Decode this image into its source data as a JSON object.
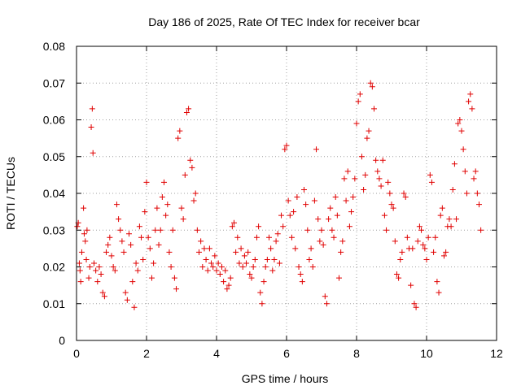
{
  "chart_data": {
    "type": "scatter",
    "title": "Day 186 of 2025, Rate Of TEC Index for receiver bcar",
    "xlabel": "GPS time / hours",
    "ylabel": "ROTI / TECUs",
    "xlim": [
      0,
      12
    ],
    "ylim": [
      0,
      0.08
    ],
    "x_ticks": [
      "0",
      "2",
      "4",
      "6",
      "8",
      "10",
      "12"
    ],
    "y_ticks": [
      "0",
      "0.01",
      "0.02",
      "0.03",
      "0.04",
      "0.05",
      "0.06",
      "0.07",
      "0.08"
    ],
    "x_tick_values": [
      0,
      2,
      4,
      6,
      8,
      10,
      12
    ],
    "y_tick_values": [
      0,
      0.01,
      0.02,
      0.03,
      0.04,
      0.05,
      0.06,
      0.07,
      0.08
    ],
    "grid": true,
    "marker": "+",
    "color": "#e00000",
    "series": [
      {
        "points": [
          [
            0.02,
            0.031
          ],
          [
            0.05,
            0.032
          ],
          [
            0.08,
            0.021
          ],
          [
            0.1,
            0.019
          ],
          [
            0.12,
            0.016
          ],
          [
            0.15,
            0.024
          ],
          [
            0.2,
            0.036
          ],
          [
            0.22,
            0.029
          ],
          [
            0.25,
            0.027
          ],
          [
            0.28,
            0.022
          ],
          [
            0.3,
            0.03
          ],
          [
            0.35,
            0.017
          ],
          [
            0.38,
            0.02
          ],
          [
            0.42,
            0.058
          ],
          [
            0.45,
            0.063
          ],
          [
            0.47,
            0.051
          ],
          [
            0.5,
            0.021
          ],
          [
            0.55,
            0.019
          ],
          [
            0.6,
            0.016
          ],
          [
            0.65,
            0.02
          ],
          [
            0.7,
            0.018
          ],
          [
            0.75,
            0.013
          ],
          [
            0.8,
            0.012
          ],
          [
            0.85,
            0.024
          ],
          [
            0.9,
            0.026
          ],
          [
            0.95,
            0.028
          ],
          [
            1.0,
            0.023
          ],
          [
            1.05,
            0.02
          ],
          [
            1.1,
            0.019
          ],
          [
            1.15,
            0.037
          ],
          [
            1.2,
            0.033
          ],
          [
            1.25,
            0.03
          ],
          [
            1.3,
            0.027
          ],
          [
            1.35,
            0.024
          ],
          [
            1.4,
            0.013
          ],
          [
            1.45,
            0.011
          ],
          [
            1.5,
            0.029
          ],
          [
            1.55,
            0.026
          ],
          [
            1.6,
            0.016
          ],
          [
            1.65,
            0.009
          ],
          [
            1.7,
            0.021
          ],
          [
            1.75,
            0.019
          ],
          [
            1.8,
            0.031
          ],
          [
            1.85,
            0.028
          ],
          [
            1.9,
            0.022
          ],
          [
            1.95,
            0.035
          ],
          [
            2.0,
            0.043
          ],
          [
            2.05,
            0.028
          ],
          [
            2.1,
            0.025
          ],
          [
            2.15,
            0.017
          ],
          [
            2.2,
            0.021
          ],
          [
            2.25,
            0.03
          ],
          [
            2.3,
            0.036
          ],
          [
            2.35,
            0.026
          ],
          [
            2.4,
            0.03
          ],
          [
            2.45,
            0.039
          ],
          [
            2.5,
            0.043
          ],
          [
            2.55,
            0.034
          ],
          [
            2.6,
            0.037
          ],
          [
            2.65,
            0.024
          ],
          [
            2.7,
            0.02
          ],
          [
            2.75,
            0.03
          ],
          [
            2.8,
            0.017
          ],
          [
            2.85,
            0.014
          ],
          [
            2.9,
            0.055
          ],
          [
            2.95,
            0.057
          ],
          [
            3.0,
            0.036
          ],
          [
            3.05,
            0.033
          ],
          [
            3.1,
            0.045
          ],
          [
            3.15,
            0.062
          ],
          [
            3.2,
            0.063
          ],
          [
            3.25,
            0.049
          ],
          [
            3.3,
            0.047
          ],
          [
            3.35,
            0.038
          ],
          [
            3.4,
            0.04
          ],
          [
            3.45,
            0.03
          ],
          [
            3.5,
            0.024
          ],
          [
            3.55,
            0.027
          ],
          [
            3.6,
            0.02
          ],
          [
            3.65,
            0.025
          ],
          [
            3.7,
            0.022
          ],
          [
            3.75,
            0.019
          ],
          [
            3.8,
            0.025
          ],
          [
            3.85,
            0.021
          ],
          [
            3.9,
            0.02
          ],
          [
            3.95,
            0.023
          ],
          [
            4.0,
            0.019
          ],
          [
            4.05,
            0.021
          ],
          [
            4.1,
            0.018
          ],
          [
            4.15,
            0.02
          ],
          [
            4.2,
            0.016
          ],
          [
            4.25,
            0.019
          ],
          [
            4.3,
            0.014
          ],
          [
            4.35,
            0.015
          ],
          [
            4.4,
            0.017
          ],
          [
            4.45,
            0.031
          ],
          [
            4.5,
            0.032
          ],
          [
            4.55,
            0.024
          ],
          [
            4.6,
            0.028
          ],
          [
            4.65,
            0.021
          ],
          [
            4.7,
            0.025
          ],
          [
            4.75,
            0.02
          ],
          [
            4.8,
            0.023
          ],
          [
            4.85,
            0.021
          ],
          [
            4.9,
            0.024
          ],
          [
            4.95,
            0.018
          ],
          [
            5.0,
            0.017
          ],
          [
            5.05,
            0.02
          ],
          [
            5.1,
            0.022
          ],
          [
            5.15,
            0.028
          ],
          [
            5.2,
            0.031
          ],
          [
            5.25,
            0.013
          ],
          [
            5.3,
            0.01
          ],
          [
            5.35,
            0.016
          ],
          [
            5.4,
            0.02
          ],
          [
            5.45,
            0.022
          ],
          [
            5.5,
            0.028
          ],
          [
            5.55,
            0.025
          ],
          [
            5.6,
            0.019
          ],
          [
            5.65,
            0.022
          ],
          [
            5.7,
            0.027
          ],
          [
            5.75,
            0.029
          ],
          [
            5.8,
            0.021
          ],
          [
            5.85,
            0.034
          ],
          [
            5.9,
            0.031
          ],
          [
            5.95,
            0.052
          ],
          [
            6.0,
            0.053
          ],
          [
            6.05,
            0.038
          ],
          [
            6.1,
            0.034
          ],
          [
            6.15,
            0.028
          ],
          [
            6.2,
            0.035
          ],
          [
            6.25,
            0.025
          ],
          [
            6.3,
            0.039
          ],
          [
            6.35,
            0.02
          ],
          [
            6.4,
            0.018
          ],
          [
            6.45,
            0.016
          ],
          [
            6.5,
            0.041
          ],
          [
            6.55,
            0.037
          ],
          [
            6.6,
            0.03
          ],
          [
            6.65,
            0.022
          ],
          [
            6.7,
            0.025
          ],
          [
            6.75,
            0.02
          ],
          [
            6.8,
            0.038
          ],
          [
            6.85,
            0.052
          ],
          [
            6.9,
            0.033
          ],
          [
            6.95,
            0.027
          ],
          [
            7.0,
            0.03
          ],
          [
            7.05,
            0.026
          ],
          [
            7.1,
            0.012
          ],
          [
            7.15,
            0.01
          ],
          [
            7.2,
            0.033
          ],
          [
            7.25,
            0.036
          ],
          [
            7.3,
            0.03
          ],
          [
            7.35,
            0.028
          ],
          [
            7.4,
            0.039
          ],
          [
            7.45,
            0.034
          ],
          [
            7.5,
            0.017
          ],
          [
            7.55,
            0.024
          ],
          [
            7.6,
            0.027
          ],
          [
            7.65,
            0.044
          ],
          [
            7.7,
            0.038
          ],
          [
            7.75,
            0.046
          ],
          [
            7.8,
            0.031
          ],
          [
            7.85,
            0.035
          ],
          [
            7.9,
            0.039
          ],
          [
            7.95,
            0.044
          ],
          [
            8.0,
            0.059
          ],
          [
            8.05,
            0.065
          ],
          [
            8.1,
            0.067
          ],
          [
            8.15,
            0.05
          ],
          [
            8.2,
            0.041
          ],
          [
            8.25,
            0.045
          ],
          [
            8.3,
            0.055
          ],
          [
            8.35,
            0.057
          ],
          [
            8.4,
            0.07
          ],
          [
            8.45,
            0.069
          ],
          [
            8.5,
            0.063
          ],
          [
            8.55,
            0.049
          ],
          [
            8.6,
            0.046
          ],
          [
            8.65,
            0.044
          ],
          [
            8.7,
            0.042
          ],
          [
            8.75,
            0.049
          ],
          [
            8.8,
            0.034
          ],
          [
            8.85,
            0.03
          ],
          [
            8.9,
            0.043
          ],
          [
            8.95,
            0.04
          ],
          [
            9.0,
            0.037
          ],
          [
            9.05,
            0.036
          ],
          [
            9.1,
            0.027
          ],
          [
            9.15,
            0.018
          ],
          [
            9.2,
            0.017
          ],
          [
            9.25,
            0.022
          ],
          [
            9.3,
            0.024
          ],
          [
            9.35,
            0.04
          ],
          [
            9.4,
            0.039
          ],
          [
            9.45,
            0.028
          ],
          [
            9.5,
            0.025
          ],
          [
            9.55,
            0.015
          ],
          [
            9.6,
            0.025
          ],
          [
            9.65,
            0.01
          ],
          [
            9.7,
            0.009
          ],
          [
            9.75,
            0.027
          ],
          [
            9.8,
            0.031
          ],
          [
            9.85,
            0.03
          ],
          [
            9.9,
            0.026
          ],
          [
            9.95,
            0.025
          ],
          [
            10.0,
            0.022
          ],
          [
            10.05,
            0.028
          ],
          [
            10.1,
            0.045
          ],
          [
            10.15,
            0.043
          ],
          [
            10.2,
            0.024
          ],
          [
            10.25,
            0.028
          ],
          [
            10.3,
            0.016
          ],
          [
            10.35,
            0.013
          ],
          [
            10.4,
            0.034
          ],
          [
            10.45,
            0.036
          ],
          [
            10.5,
            0.023
          ],
          [
            10.55,
            0.024
          ],
          [
            10.6,
            0.031
          ],
          [
            10.65,
            0.033
          ],
          [
            10.7,
            0.031
          ],
          [
            10.75,
            0.041
          ],
          [
            10.8,
            0.048
          ],
          [
            10.85,
            0.033
          ],
          [
            10.9,
            0.059
          ],
          [
            10.95,
            0.06
          ],
          [
            11.0,
            0.057
          ],
          [
            11.05,
            0.052
          ],
          [
            11.1,
            0.046
          ],
          [
            11.15,
            0.04
          ],
          [
            11.2,
            0.065
          ],
          [
            11.25,
            0.067
          ],
          [
            11.3,
            0.063
          ],
          [
            11.35,
            0.044
          ],
          [
            11.4,
            0.046
          ],
          [
            11.45,
            0.04
          ],
          [
            11.5,
            0.037
          ],
          [
            11.55,
            0.03
          ]
        ]
      }
    ]
  }
}
